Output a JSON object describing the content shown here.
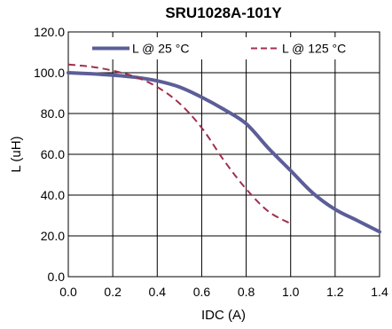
{
  "chart_data": {
    "type": "line",
    "title": "SRU1028A-101Y",
    "xlabel": "IDC (A)",
    "ylabel": "L (uH)",
    "xlim": [
      0,
      1.4
    ],
    "ylim": [
      0,
      120
    ],
    "x_ticks": [
      "0.0",
      "0.2",
      "0.4",
      "0.6",
      "0.8",
      "1.0",
      "1.2",
      "1.4"
    ],
    "y_ticks": [
      "0.0",
      "20.0",
      "40.0",
      "60.0",
      "80.0",
      "100.0",
      "120.0"
    ],
    "grid": true,
    "legend_position": "top",
    "series": [
      {
        "name": "L @ 25 °C",
        "color": "#5b5e97",
        "style": "solid",
        "x": [
          0.0,
          0.1,
          0.2,
          0.3,
          0.4,
          0.5,
          0.6,
          0.7,
          0.8,
          0.9,
          1.0,
          1.1,
          1.2,
          1.3,
          1.4
        ],
        "y": [
          100.0,
          99.5,
          98.8,
          97.8,
          96.0,
          93.0,
          88.0,
          82.0,
          75.0,
          63.0,
          52.0,
          41.0,
          33.0,
          27.5,
          22.0
        ]
      },
      {
        "name": "L @ 125 °C",
        "color": "#a0304e",
        "style": "dashed",
        "x": [
          0.0,
          0.1,
          0.2,
          0.3,
          0.4,
          0.5,
          0.6,
          0.7,
          0.8,
          0.9,
          1.0
        ],
        "y": [
          104.0,
          103.0,
          101.0,
          98.0,
          93.0,
          85.0,
          73.0,
          57.0,
          43.0,
          32.0,
          26.0
        ]
      }
    ]
  }
}
